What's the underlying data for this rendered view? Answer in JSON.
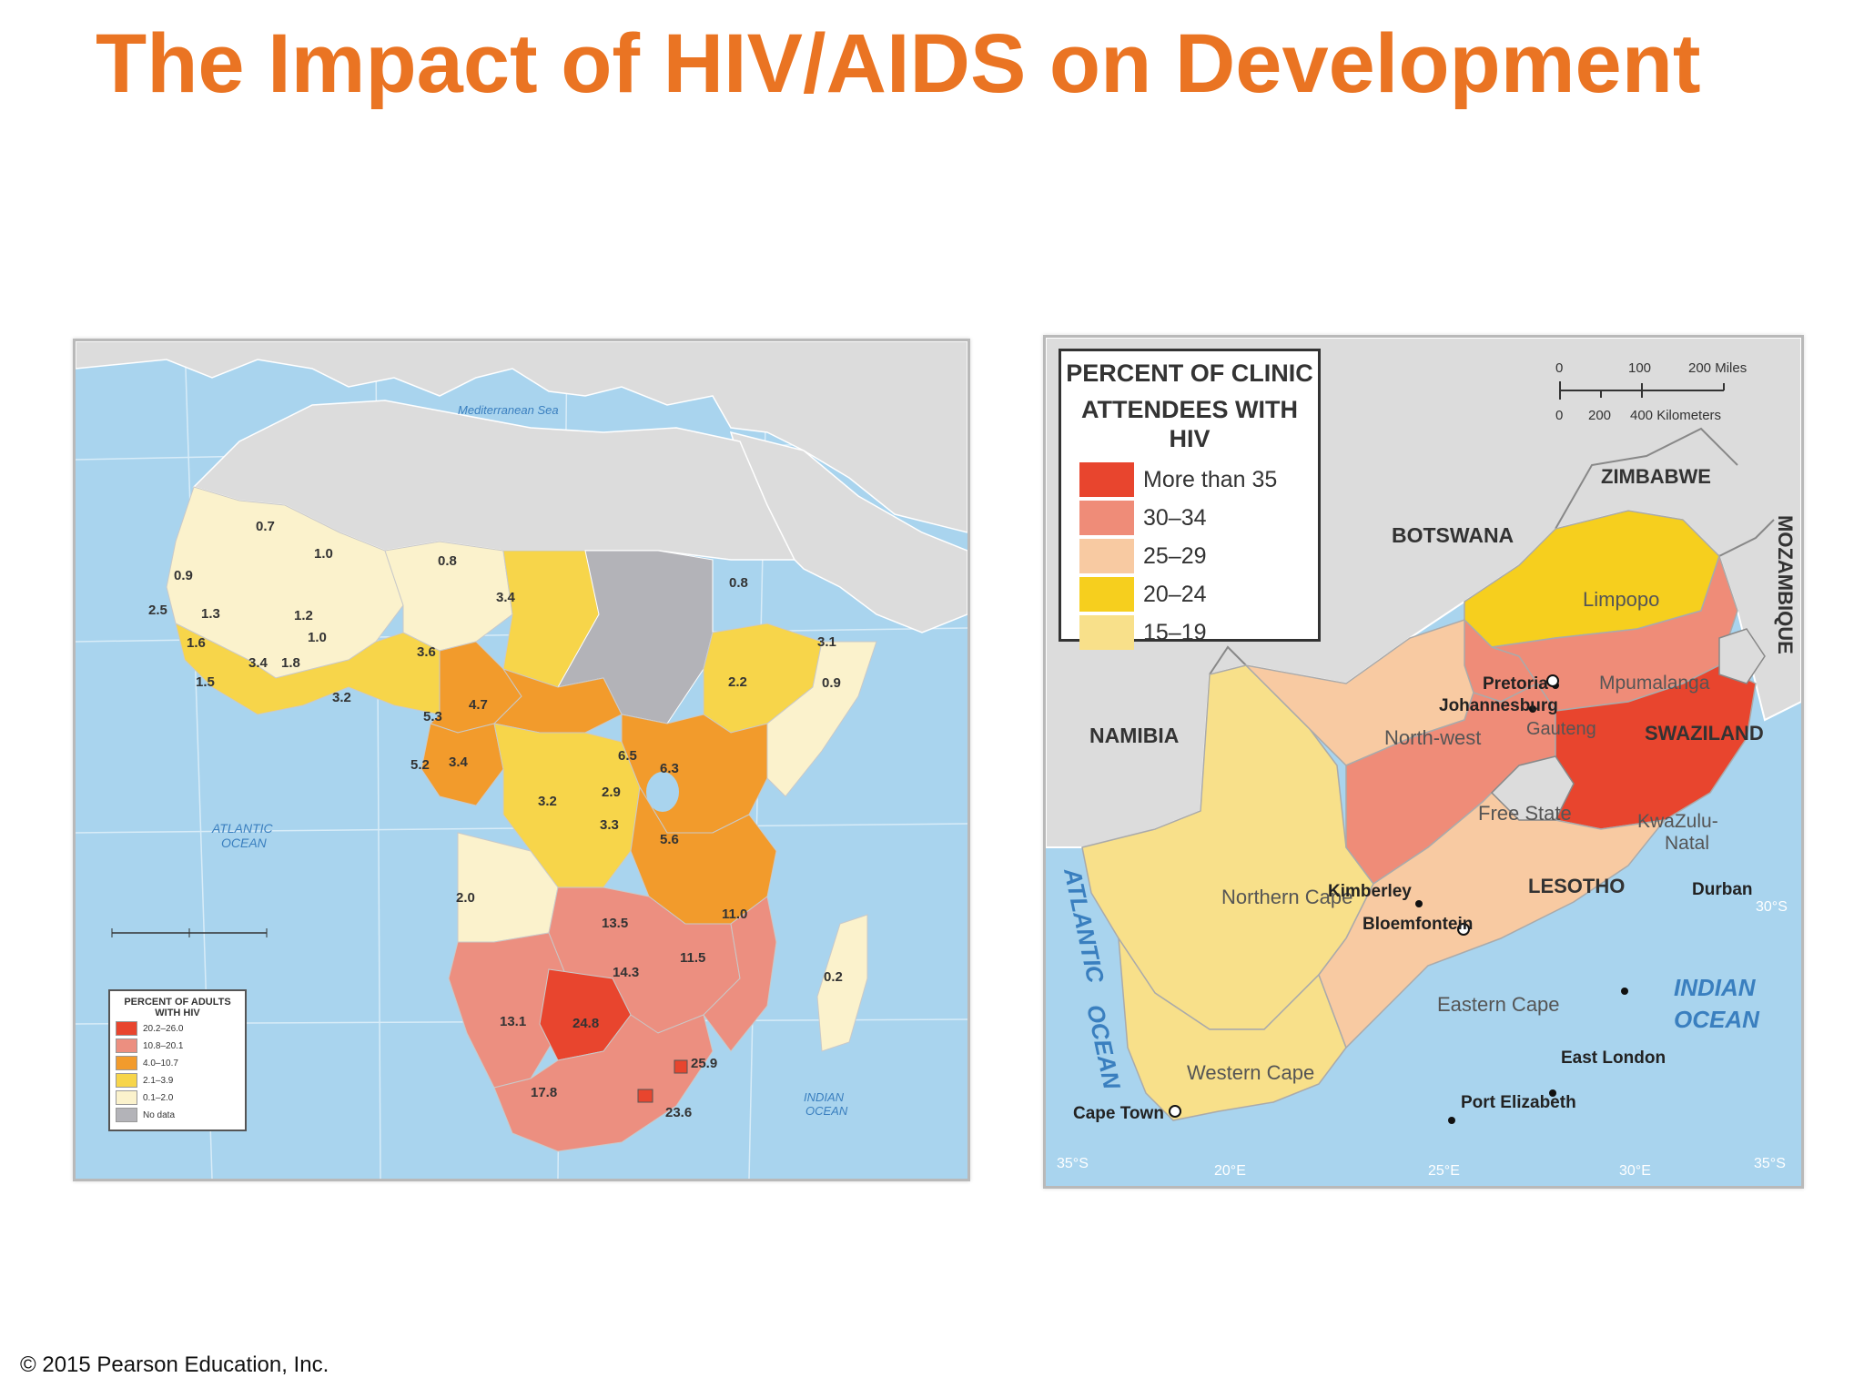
{
  "slide": {
    "title": "The Impact of HIV/AIDS on Development",
    "copyright": "© 2015 Pearson Education, Inc."
  },
  "colors": {
    "title_orange": "#ea7423",
    "ocean": "#a9d4ee",
    "no_data_gray": "#b3b3b8",
    "land_gray": "#dcdcdc"
  },
  "africa_map": {
    "water_labels": {
      "mediterranean": "Mediterranean Sea",
      "atlantic_line1": "ATLANTIC",
      "atlantic_line2": "OCEAN",
      "indian_line1": "INDIAN",
      "indian_line2": "OCEAN"
    },
    "legend": {
      "title_line1": "PERCENT OF ADULTS",
      "title_line2": "WITH HIV",
      "items": [
        {
          "label": "20.2–26.0",
          "color": "#e8452e"
        },
        {
          "label": "10.8–20.1",
          "color": "#ec8f80"
        },
        {
          "label": "4.0–10.7",
          "color": "#f29b2c"
        },
        {
          "label": "2.1–3.9",
          "color": "#f7d54a"
        },
        {
          "label": "0.1–2.0",
          "color": "#fbf2cc"
        },
        {
          "label": "No data",
          "color": "#b3b3b8"
        }
      ]
    },
    "country_values": [
      "0.7",
      "1.0",
      "0.8",
      "3.4",
      "0.8",
      "3.1",
      "0.9",
      "2.2",
      "0.9",
      "2.5",
      "1.3",
      "1.2",
      "1.0",
      "3.6",
      "1.6",
      "3.4",
      "1.8",
      "1.5",
      "3.2",
      "5.3",
      "4.7",
      "6.5",
      "6.3",
      "5.2",
      "3.4",
      "2.9",
      "3.2",
      "3.3",
      "5.6",
      "2.0",
      "11.0",
      "13.5",
      "11.5",
      "14.3",
      "0.2",
      "13.1",
      "24.8",
      "25.9",
      "17.8",
      "23.6"
    ]
  },
  "sa_map": {
    "legend": {
      "title_line1": "PERCENT OF CLINIC",
      "title_line2": "ATTENDEES WITH HIV",
      "items": [
        {
          "label": "More than 35",
          "color": "#e8452e"
        },
        {
          "label": "30–34",
          "color": "#ef8c78"
        },
        {
          "label": "25–29",
          "color": "#f8caa2"
        },
        {
          "label": "20–24",
          "color": "#f6cf1e"
        },
        {
          "label": "15–19",
          "color": "#f8e08a"
        }
      ]
    },
    "scale": {
      "miles": [
        "0",
        "100",
        "200 Miles"
      ],
      "km": [
        "0",
        "200",
        "400 Kilometers"
      ]
    },
    "countries": {
      "zimbabwe": "ZIMBABWE",
      "botswana": "BOTSWANA",
      "mozambique": "MOZAMBIQUE",
      "namibia": "NAMIBIA",
      "swaziland": "SWAZILAND",
      "lesotho": "LESOTHO"
    },
    "provinces": {
      "limpopo": "Limpopo",
      "mpumalanga": "Mpumalanga",
      "gauteng": "Gauteng",
      "north_west": "North-west",
      "free_state": "Free State",
      "kwazulu_line1": "KwaZulu-",
      "kwazulu_line2": "Natal",
      "northern_cape": "Northern Cape",
      "eastern_cape": "Eastern Cape",
      "western_cape": "Western Cape"
    },
    "cities": {
      "pretoria": "Pretoria",
      "johannesburg": "Johannesburg",
      "kimberley": "Kimberley",
      "bloemfontein": "Bloemfontein",
      "durban": "Durban",
      "east_london": "East London",
      "port_elizabeth": "Port Elizabeth",
      "cape_town": "Cape Town"
    },
    "oceans": {
      "atlantic": "ATLANTIC",
      "atlantic2": "OCEAN",
      "indian": "INDIAN",
      "indian2": "OCEAN"
    },
    "graticule": {
      "lat_left": "35°S",
      "lat_right": "35°S",
      "lat_30": "30°S",
      "lon_20": "20°E",
      "lon_25": "25°E",
      "lon_30": "30°E"
    }
  }
}
